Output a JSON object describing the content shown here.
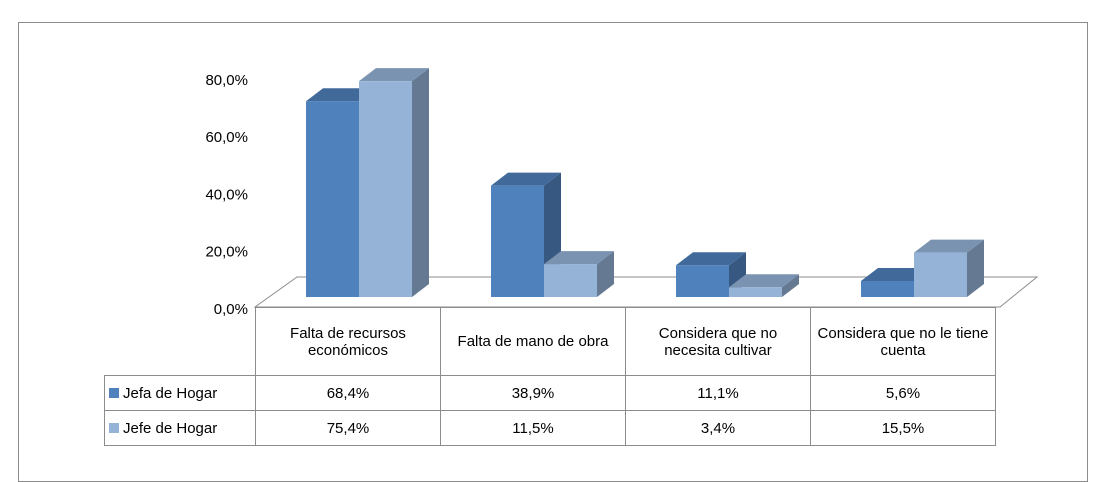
{
  "chart_data": {
    "type": "bar3d",
    "categories": [
      "Falta de recursos económicos",
      "Falta de mano de obra",
      "Considera que no necesita cultivar",
      "Considera que no le tiene cuenta"
    ],
    "series": [
      {
        "name": "Jefa de Hogar",
        "color": "#4f81bd",
        "values": [
          68.4,
          38.9,
          11.1,
          5.6
        ],
        "value_labels": [
          "68,4%",
          "38,9%",
          "11,1%",
          "5,6%"
        ]
      },
      {
        "name": "Jefe de Hogar",
        "color": "#95b3d7",
        "values": [
          75.4,
          11.5,
          3.4,
          15.5
        ],
        "value_labels": [
          "75,4%",
          "11,5%",
          "3,4%",
          "15,5%"
        ]
      }
    ],
    "ylim": [
      0,
      80
    ],
    "yticks": [
      {
        "value": 0,
        "label": "0,0%"
      },
      {
        "value": 20,
        "label": "20,0%"
      },
      {
        "value": 40,
        "label": "40,0%"
      },
      {
        "value": 60,
        "label": "60,0%"
      },
      {
        "value": 80,
        "label": "80,0%"
      }
    ]
  }
}
